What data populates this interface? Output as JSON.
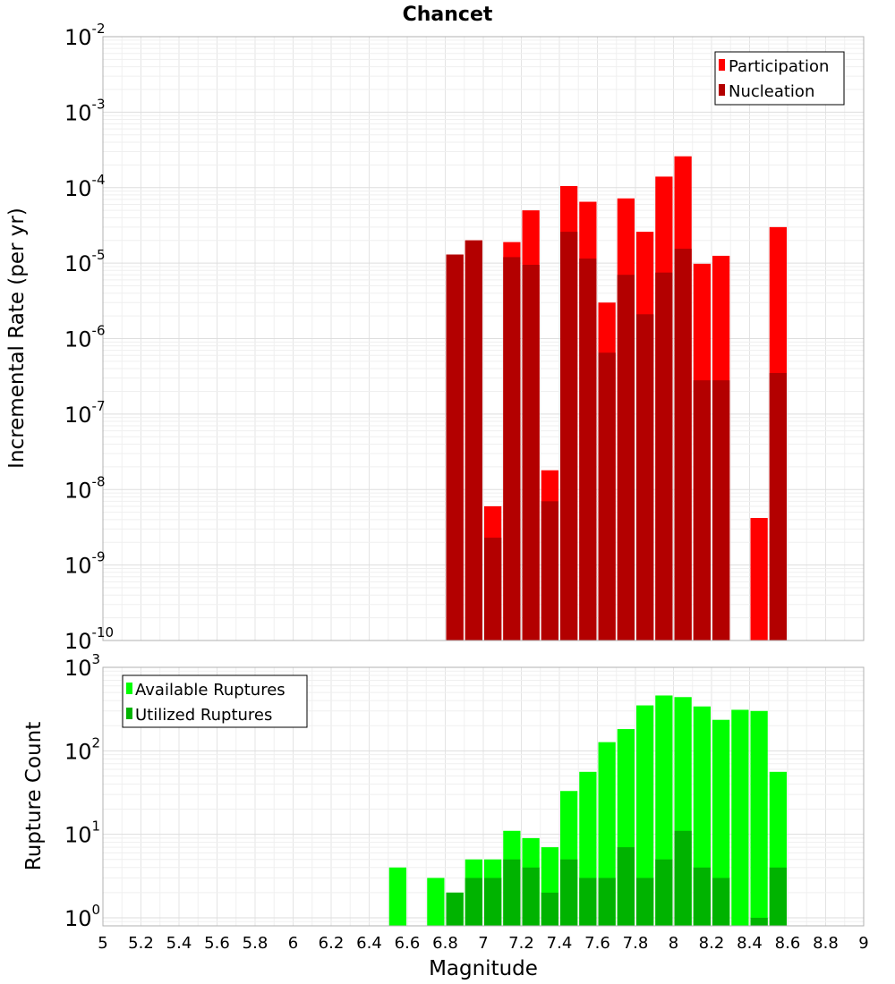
{
  "title": "Chancet",
  "x_axis": {
    "label": "Magnitude",
    "ticks": [
      "5",
      "5.2",
      "5.4",
      "5.6",
      "5.8",
      "6",
      "6.2",
      "6.4",
      "6.6",
      "6.8",
      "7",
      "7.2",
      "7.4",
      "7.6",
      "7.8",
      "8",
      "8.2",
      "8.4",
      "8.6",
      "8.8",
      "9"
    ]
  },
  "chart_data": [
    {
      "type": "bar",
      "title": "Chancet",
      "xlabel": "",
      "ylabel": "Incremental Rate (per yr)",
      "y_scale": "log",
      "ylim": [
        1e-10,
        0.01
      ],
      "xlim": [
        5,
        9
      ],
      "y_ticks": [
        {
          "base": "10",
          "exp": "-10"
        },
        {
          "base": "10",
          "exp": "-9"
        },
        {
          "base": "10",
          "exp": "-8"
        },
        {
          "base": "10",
          "exp": "-7"
        },
        {
          "base": "10",
          "exp": "-6"
        },
        {
          "base": "10",
          "exp": "-5"
        },
        {
          "base": "10",
          "exp": "-4"
        },
        {
          "base": "10",
          "exp": "-3"
        },
        {
          "base": "10",
          "exp": "-2"
        }
      ],
      "legend_position": "top-right",
      "x": [
        6.85,
        6.95,
        7.05,
        7.15,
        7.25,
        7.35,
        7.45,
        7.55,
        7.65,
        7.75,
        7.85,
        7.95,
        8.05,
        8.15,
        8.25,
        8.35,
        8.45,
        8.55
      ],
      "series": [
        {
          "name": "Participation",
          "color": "#ff0000",
          "values": [
            1.3e-05,
            2e-05,
            6e-09,
            1.9e-05,
            5e-05,
            1.8e-08,
            0.000105,
            6.5e-05,
            3e-06,
            7.2e-05,
            2.6e-05,
            0.00014,
            0.00026,
            9.8e-06,
            1.25e-05,
            null,
            4.2e-09,
            3e-05
          ]
        },
        {
          "name": "Nucleation",
          "color": "#b30000",
          "values": [
            1.3e-05,
            2e-05,
            2.3e-09,
            1.2e-05,
            9.5e-06,
            7e-09,
            2.6e-05,
            1.15e-05,
            6.5e-07,
            7e-06,
            2.1e-06,
            7.5e-06,
            1.55e-05,
            2.8e-07,
            2.8e-07,
            null,
            null,
            3.5e-07
          ]
        }
      ]
    },
    {
      "type": "bar",
      "xlabel": "Magnitude",
      "ylabel": "Rupture Count",
      "y_scale": "log",
      "ylim": [
        0.8,
        1000
      ],
      "xlim": [
        5,
        9
      ],
      "y_ticks": [
        {
          "base": "10",
          "exp": "0"
        },
        {
          "base": "10",
          "exp": "1"
        },
        {
          "base": "10",
          "exp": "2"
        },
        {
          "base": "10",
          "exp": "3"
        }
      ],
      "legend_position": "top-left",
      "x": [
        6.55,
        6.65,
        6.75,
        6.85,
        6.95,
        7.05,
        7.15,
        7.25,
        7.35,
        7.45,
        7.55,
        7.65,
        7.75,
        7.85,
        7.95,
        8.05,
        8.15,
        8.25,
        8.35,
        8.45,
        8.55
      ],
      "series": [
        {
          "name": "Available Ruptures",
          "color": "#00ff00",
          "values": [
            4,
            null,
            3,
            2,
            5,
            5,
            11,
            9,
            7,
            33,
            56,
            127,
            182,
            350,
            460,
            440,
            340,
            235,
            310,
            300,
            56
          ]
        },
        {
          "name": "Utilized Ruptures",
          "color": "#00b300",
          "values": [
            null,
            null,
            null,
            2,
            3,
            3,
            5,
            4,
            2,
            5,
            3,
            3,
            7,
            3,
            5,
            11,
            4,
            3,
            null,
            1,
            4
          ]
        }
      ]
    }
  ]
}
